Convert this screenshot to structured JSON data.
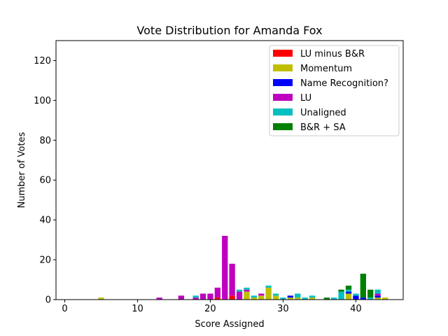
{
  "chart_data": {
    "type": "bar",
    "stacked": true,
    "title": "Vote Distribution for Amanda Fox",
    "xlabel": "Score Assigned",
    "ylabel": "Number of Votes",
    "xlim": [
      -1.2,
      46.5
    ],
    "ylim": [
      0,
      130
    ],
    "xticks": [
      0,
      10,
      20,
      30,
      40
    ],
    "yticks": [
      0,
      20,
      40,
      60,
      80,
      100,
      120
    ],
    "grid": false,
    "legend_position": "top-right",
    "x": [
      5,
      13,
      16,
      18,
      19,
      20,
      21,
      22,
      23,
      24,
      25,
      26,
      27,
      28,
      29,
      30,
      31,
      32,
      33,
      34,
      36,
      37,
      38,
      39,
      40,
      41,
      42,
      43,
      44
    ],
    "series": [
      {
        "name": "LU minus B&R",
        "color": "#ff0000",
        "values": [
          0,
          0,
          0,
          0,
          0,
          0,
          1,
          0,
          2,
          0,
          0,
          0,
          0,
          0,
          0,
          0,
          0,
          0,
          0,
          0,
          0,
          0,
          0,
          0,
          0,
          0,
          0,
          0,
          0
        ]
      },
      {
        "name": "Momentum",
        "color": "#bfbf00",
        "values": [
          1,
          0,
          0,
          0,
          0,
          0,
          0,
          0,
          0,
          0,
          4,
          1,
          2,
          6,
          2,
          0,
          1,
          1,
          0,
          1,
          0,
          0,
          0,
          3,
          0,
          0,
          0,
          1,
          1
        ]
      },
      {
        "name": "Name Recognition?",
        "color": "#0000ff",
        "values": [
          0,
          0,
          0,
          0,
          0,
          0,
          0,
          0,
          0,
          0,
          0,
          0,
          0,
          0,
          0,
          0,
          1,
          0,
          0,
          0,
          0,
          0,
          0,
          1,
          2,
          1,
          0,
          1,
          0
        ]
      },
      {
        "name": "LU",
        "color": "#bf00bf",
        "values": [
          0,
          1,
          2,
          1,
          3,
          3,
          5,
          32,
          16,
          4,
          1,
          0,
          1,
          0,
          0,
          0,
          0,
          0,
          0,
          0,
          0,
          0,
          0,
          0,
          0,
          0,
          0,
          1,
          0
        ]
      },
      {
        "name": "Unaligned",
        "color": "#00bfbf",
        "values": [
          0,
          0,
          0,
          1,
          0,
          0,
          0,
          0,
          0,
          1,
          1,
          1,
          0,
          1,
          1,
          1,
          0,
          2,
          1,
          1,
          0,
          1,
          4,
          1,
          1,
          0,
          1,
          2,
          0
        ]
      },
      {
        "name": "B&R + SA",
        "color": "#008000",
        "values": [
          0,
          0,
          0,
          0,
          0,
          0,
          0,
          0,
          0,
          0,
          0,
          0,
          0,
          0,
          0,
          0,
          0,
          0,
          0,
          0,
          1,
          0,
          1,
          2,
          0,
          12,
          4,
          0,
          0
        ]
      }
    ]
  }
}
